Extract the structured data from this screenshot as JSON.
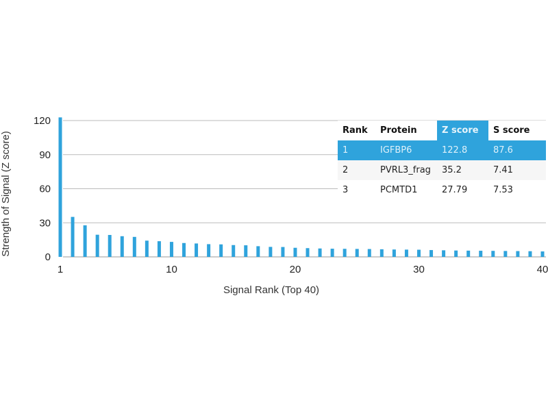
{
  "chart_data": {
    "type": "bar",
    "xlabel": "Signal Rank (Top 40)",
    "ylabel": "Strength of Signal (Z score)",
    "ylim": [
      0,
      120
    ],
    "yticks": [
      "0",
      "30",
      "60",
      "90",
      "120"
    ],
    "xticks": [
      "1",
      "10",
      "20",
      "30",
      "40"
    ],
    "grid": true,
    "bar_color": "#2fa3dc",
    "x": [
      1,
      2,
      3,
      4,
      5,
      6,
      7,
      8,
      9,
      10,
      11,
      12,
      13,
      14,
      15,
      16,
      17,
      18,
      19,
      20,
      21,
      22,
      23,
      24,
      25,
      26,
      27,
      28,
      29,
      30,
      31,
      32,
      33,
      34,
      35,
      36,
      37,
      38,
      39,
      40
    ],
    "values": [
      122.8,
      35.2,
      27.79,
      19.5,
      19.3,
      18.2,
      17.6,
      14.3,
      13.8,
      13.2,
      12.2,
      11.8,
      11.2,
      11.0,
      10.4,
      10.2,
      9.4,
      8.8,
      8.7,
      8.0,
      7.7,
      7.4,
      7.2,
      7.1,
      7.0,
      6.9,
      6.7,
      6.5,
      6.4,
      6.3,
      6.0,
      5.8,
      5.6,
      5.5,
      5.4,
      5.3,
      5.2,
      5.1,
      5.0,
      4.8
    ]
  },
  "table": {
    "headers": [
      "Rank",
      "Protein",
      "Z score",
      "S score"
    ],
    "rows": [
      [
        "1",
        "IGFBP6",
        "122.8",
        "87.6"
      ],
      [
        "2",
        "PVRL3_frag",
        "35.2",
        "7.41"
      ],
      [
        "3",
        "PCMTD1",
        "27.79",
        "7.53"
      ]
    ],
    "highlight_color": "#2fa3dc"
  }
}
